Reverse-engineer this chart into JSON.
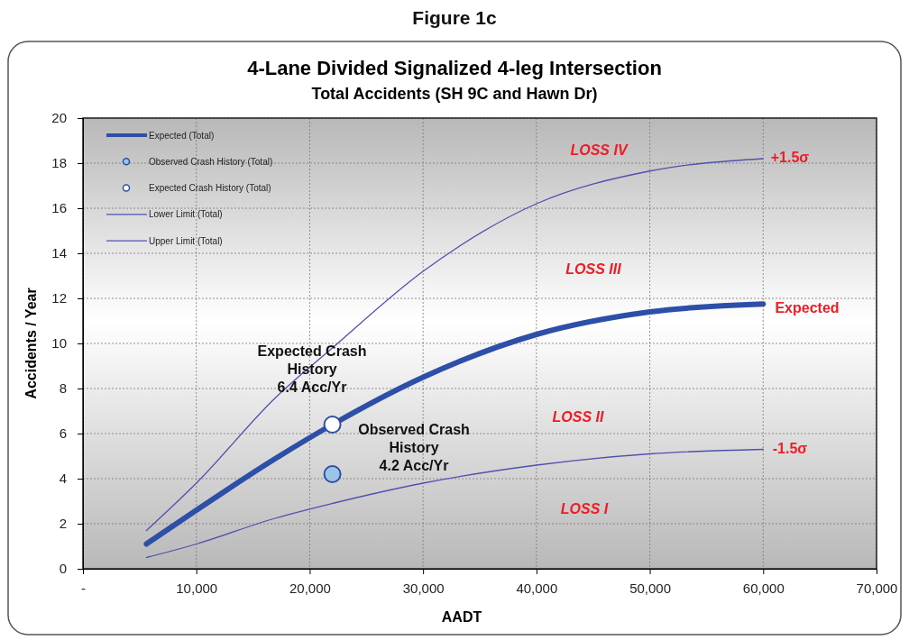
{
  "chart_data": {
    "type": "line",
    "title": "4-Lane Divided Signalized 4-leg Intersection",
    "subtitle": "Total Accidents (SH 9C and Hawn Dr)",
    "xlabel": "AADT",
    "ylabel": "Accidents / Year",
    "xlim": [
      0,
      70000
    ],
    "xticks": [
      {
        "value": 0,
        "label": "-"
      },
      {
        "value": 10000,
        "label": "10,000"
      },
      {
        "value": 20000,
        "label": "20,000"
      },
      {
        "value": 30000,
        "label": "30,000"
      },
      {
        "value": 40000,
        "label": "40,000"
      },
      {
        "value": 50000,
        "label": "50,000"
      },
      {
        "value": 60000,
        "label": "60,000"
      },
      {
        "value": 70000,
        "label": "70,000"
      }
    ],
    "ylim": [
      0,
      20
    ],
    "yticks": [
      0,
      2,
      4,
      6,
      8,
      10,
      12,
      14,
      16,
      18,
      20
    ],
    "grid": true,
    "legend": "top left",
    "series": [
      {
        "name": "Expected (Total)",
        "color": "#2e4fa8",
        "x": [
          5600,
          10000,
          17000,
          22000,
          30000,
          40000,
          50000,
          60000
        ],
        "values": [
          1.1,
          2.6,
          4.9,
          6.4,
          8.5,
          10.4,
          11.4,
          11.75
        ]
      },
      {
        "name": "Observed Crash History (Total)",
        "type": "scatter",
        "color": "#9dc3e6",
        "x": [
          22000
        ],
        "values": [
          4.2
        ]
      },
      {
        "name": "Expected Crash History (Total)",
        "type": "scatter",
        "color": "#ffffff",
        "x": [
          22000
        ],
        "values": [
          6.4
        ]
      },
      {
        "name": "Lower Limit (Total)",
        "color": "#5050b0",
        "x": [
          5600,
          10000,
          17000,
          22000,
          30000,
          40000,
          50000,
          60000
        ],
        "values": [
          0.5,
          1.1,
          2.25,
          2.9,
          3.8,
          4.6,
          5.1,
          5.3
        ]
      },
      {
        "name": "Upper Limit (Total)",
        "color": "#5050b0",
        "x": [
          5600,
          10000,
          17000,
          22000,
          30000,
          40000,
          50000,
          60000
        ],
        "values": [
          1.7,
          3.8,
          7.6,
          9.8,
          13.2,
          16.2,
          17.65,
          18.2
        ]
      }
    ],
    "annotations": [
      "Figure 1c",
      "Expected Crash\nHistory\n6.4 Acc/Yr",
      "Observed Crash\nHistory\n4.2 Acc/Yr",
      "LOSS IV",
      "LOSS III",
      "LOSS II",
      "LOSS I",
      "+1.5σ",
      "Expected",
      "-1.5σ"
    ]
  }
}
